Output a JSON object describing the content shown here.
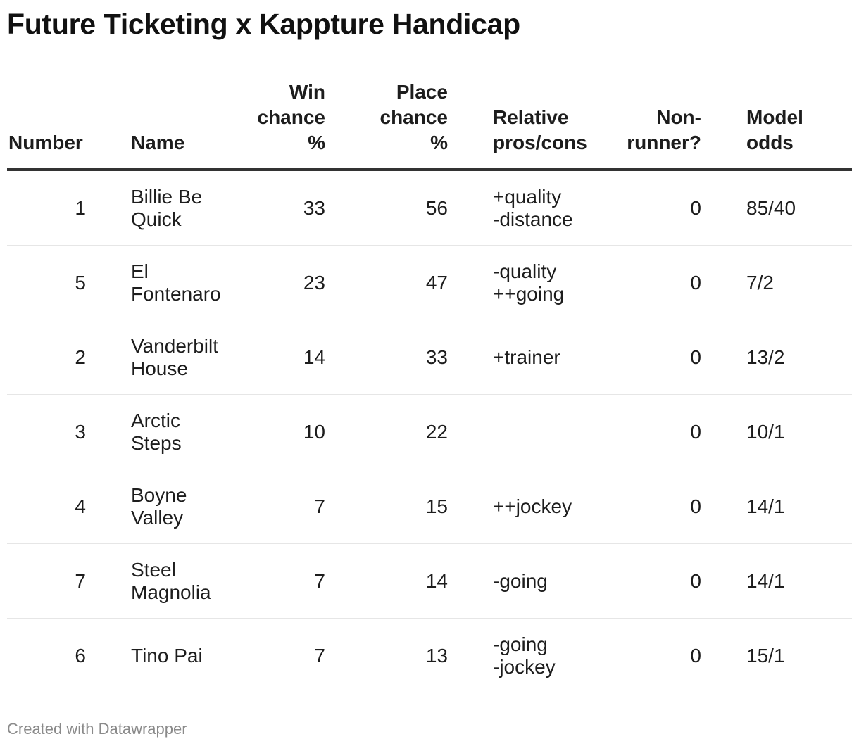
{
  "title": "Future Ticketing x Kappture Handicap",
  "footer": "Created with Datawrapper",
  "chart_data": {
    "type": "table",
    "title": "Future Ticketing x Kappture Handicap",
    "columns": [
      "Number",
      "Name",
      "Win chance %",
      "Place chance %",
      "Relative pros/cons",
      "Non-runner?",
      "Model odds"
    ],
    "headers": {
      "number": "Number",
      "name": "Name",
      "win": "Win\nchance\n%",
      "place": "Place\nchance\n%",
      "pros": "Relative\npros/cons",
      "nonrunner": "Non-\nrunner?",
      "odds": "Model\nodds"
    },
    "rows": [
      {
        "number": "1",
        "name": "Billie Be\nQuick",
        "win": "33",
        "place": "56",
        "pros": "+quality\n-distance",
        "nonrunner": "0",
        "odds": "85/40"
      },
      {
        "number": "5",
        "name": "El\nFontenaro",
        "win": "23",
        "place": "47",
        "pros": "-quality\n++going",
        "nonrunner": "0",
        "odds": "7/2"
      },
      {
        "number": "2",
        "name": "Vanderbilt\nHouse",
        "win": "14",
        "place": "33",
        "pros": "+trainer",
        "nonrunner": "0",
        "odds": "13/2"
      },
      {
        "number": "3",
        "name": "Arctic\nSteps",
        "win": "10",
        "place": "22",
        "pros": "",
        "nonrunner": "0",
        "odds": "10/1"
      },
      {
        "number": "4",
        "name": "Boyne\nValley",
        "win": "7",
        "place": "15",
        "pros": "++jockey",
        "nonrunner": "0",
        "odds": "14/1"
      },
      {
        "number": "7",
        "name": "Steel\nMagnolia",
        "win": "7",
        "place": "14",
        "pros": "-going",
        "nonrunner": "0",
        "odds": "14/1"
      },
      {
        "number": "6",
        "name": "Tino Pai",
        "win": "7",
        "place": "13",
        "pros": "-going\n-jockey",
        "nonrunner": "0",
        "odds": "15/1"
      }
    ]
  }
}
